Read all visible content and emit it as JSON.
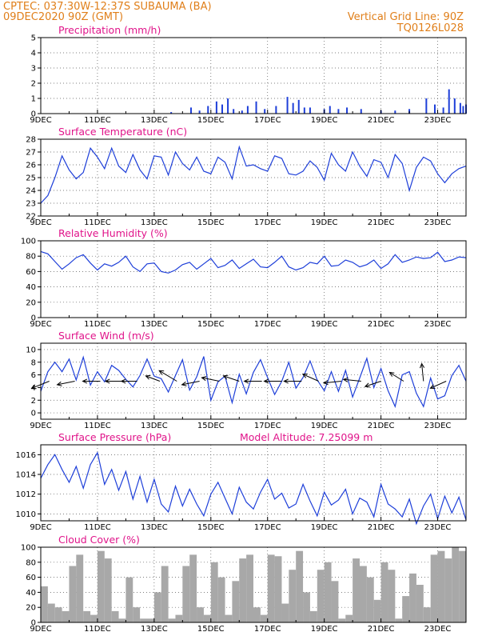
{
  "header": {
    "left_line1": "CPTEC:   037:30W-12:37S   SUBAUMA (BA)",
    "left_line2": "09DEC2020 90Z (GMT)",
    "right_line1": "Vertical Grid Line: 90Z",
    "right_line2": "TQ0126L028"
  },
  "colors": {
    "header": "#e07f1a",
    "title": "#e0148a",
    "line": "#1e3fd9",
    "cloud": "#a8a8a8",
    "arrow": "#000000",
    "grid": "#555555"
  },
  "chart_data": [
    {
      "id": "precip",
      "type": "bar",
      "title": "Precipitation (mm/h)",
      "x_labels": [
        "9DEC",
        "11DEC",
        "13DEC",
        "15DEC",
        "17DEC",
        "19DEC",
        "21DEC",
        "23DEC"
      ],
      "ylim": [
        0,
        5
      ],
      "yticks": [
        0,
        1,
        2,
        3,
        4,
        5
      ],
      "x": [
        4.6,
        5.3,
        5.6,
        5.9,
        6.2,
        6.4,
        6.6,
        6.8,
        7.1,
        7.3,
        7.6,
        7.9,
        8.3,
        8.7,
        8.9,
        9.1,
        9.3,
        9.5,
        10.0,
        10.2,
        10.5,
        10.8,
        11.3,
        12.0,
        12.5,
        13.0,
        13.6,
        13.9,
        14.2,
        14.4,
        14.6,
        14.8,
        14.9,
        15.0
      ],
      "values": [
        0.1,
        0.4,
        0.2,
        0.5,
        0.8,
        0.6,
        1.0,
        0.3,
        0.2,
        0.5,
        0.8,
        0.3,
        0.5,
        1.1,
        0.7,
        0.9,
        0.4,
        0.4,
        0.3,
        0.5,
        0.3,
        0.4,
        0.3,
        0.2,
        0.2,
        0.3,
        1.0,
        0.6,
        0.4,
        1.6,
        1.0,
        0.7,
        0.5,
        0.6
      ]
    },
    {
      "id": "temp",
      "type": "line",
      "title": "Surface Temperature (nC)",
      "x_labels": [
        "9DEC",
        "11DEC",
        "13DEC",
        "15DEC",
        "17DEC",
        "19DEC",
        "21DEC",
        "23DEC"
      ],
      "ylim": [
        22,
        28
      ],
      "yticks": [
        22,
        23,
        24,
        25,
        26,
        27,
        28
      ],
      "x": [
        0,
        0.25,
        0.5,
        0.75,
        1.0,
        1.25,
        1.5,
        1.75,
        2.0,
        2.25,
        2.5,
        2.75,
        3.0,
        3.25,
        3.5,
        3.75,
        4.0,
        4.25,
        4.5,
        4.75,
        5.0,
        5.25,
        5.5,
        5.75,
        6.0,
        6.25,
        6.5,
        6.75,
        7.0,
        7.25,
        7.5,
        7.75,
        8.0,
        8.25,
        8.5,
        8.75,
        9.0,
        9.25,
        9.5,
        9.75,
        10.0,
        10.25,
        10.5,
        10.75,
        11.0,
        11.25,
        11.5,
        11.75,
        12.0,
        12.25,
        12.5,
        12.75,
        13.0,
        13.25,
        13.5,
        13.75,
        14.0,
        14.25,
        14.5,
        14.75,
        15.0
      ],
      "values": [
        23.0,
        23.6,
        25.0,
        26.7,
        25.6,
        24.9,
        25.4,
        27.3,
        26.6,
        25.7,
        27.3,
        25.9,
        25.4,
        26.8,
        25.6,
        24.9,
        26.7,
        26.6,
        25.2,
        27.0,
        26.1,
        25.6,
        26.6,
        25.5,
        25.3,
        26.6,
        26.2,
        24.9,
        27.4,
        25.9,
        26.0,
        25.7,
        25.5,
        26.7,
        26.5,
        25.3,
        25.2,
        25.5,
        26.3,
        25.8,
        24.8,
        26.9,
        26.0,
        25.5,
        27.0,
        25.9,
        25.1,
        26.4,
        26.2,
        25.0,
        26.8,
        26.1,
        24.0,
        25.8,
        26.6,
        26.3,
        25.3,
        24.6,
        25.3,
        25.7,
        25.9
      ]
    },
    {
      "id": "rh",
      "type": "line",
      "title": "Relative Humidity (%)",
      "x_labels": [
        "9DEC",
        "11DEC",
        "13DEC",
        "15DEC",
        "17DEC",
        "19DEC",
        "21DEC",
        "23DEC"
      ],
      "ylim": [
        0,
        100
      ],
      "yticks": [
        0,
        20,
        40,
        60,
        80,
        100
      ],
      "x": [
        0,
        0.25,
        0.5,
        0.75,
        1.0,
        1.25,
        1.5,
        1.75,
        2.0,
        2.25,
        2.5,
        2.75,
        3.0,
        3.25,
        3.5,
        3.75,
        4.0,
        4.25,
        4.5,
        4.75,
        5.0,
        5.25,
        5.5,
        5.75,
        6.0,
        6.25,
        6.5,
        6.75,
        7.0,
        7.25,
        7.5,
        7.75,
        8.0,
        8.25,
        8.5,
        8.75,
        9.0,
        9.25,
        9.5,
        9.75,
        10.0,
        10.25,
        10.5,
        10.75,
        11.0,
        11.25,
        11.5,
        11.75,
        12.0,
        12.25,
        12.5,
        12.75,
        13.0,
        13.25,
        13.5,
        13.75,
        14.0,
        14.25,
        14.5,
        14.75,
        15.0
      ],
      "values": [
        86,
        83,
        73,
        63,
        70,
        78,
        82,
        71,
        62,
        70,
        67,
        72,
        80,
        66,
        60,
        70,
        71,
        60,
        58,
        62,
        69,
        72,
        63,
        70,
        77,
        65,
        68,
        75,
        64,
        70,
        76,
        66,
        65,
        72,
        80,
        66,
        62,
        65,
        72,
        70,
        80,
        67,
        68,
        75,
        72,
        66,
        69,
        75,
        64,
        70,
        82,
        72,
        75,
        79,
        77,
        78,
        85,
        73,
        75,
        79,
        78
      ]
    },
    {
      "id": "wind",
      "type": "line",
      "title": "Surface Wind (m/s)",
      "x_labels": [
        "9DEC",
        "11DEC",
        "13DEC",
        "15DEC",
        "17DEC",
        "19DEC",
        "21DEC",
        "23DEC"
      ],
      "ylim": [
        -1,
        11
      ],
      "yticks": [
        0,
        2,
        4,
        6,
        8,
        10
      ],
      "x": [
        0,
        0.25,
        0.5,
        0.75,
        1.0,
        1.25,
        1.5,
        1.75,
        2.0,
        2.25,
        2.5,
        2.75,
        3.0,
        3.25,
        3.5,
        3.75,
        4.0,
        4.25,
        4.5,
        4.75,
        5.0,
        5.25,
        5.5,
        5.75,
        6.0,
        6.25,
        6.5,
        6.75,
        7.0,
        7.25,
        7.5,
        7.75,
        8.0,
        8.25,
        8.5,
        8.75,
        9.0,
        9.25,
        9.5,
        9.75,
        10.0,
        10.25,
        10.5,
        10.75,
        11.0,
        11.25,
        11.5,
        11.75,
        12.0,
        12.25,
        12.5,
        12.75,
        13.0,
        13.25,
        13.5,
        13.75,
        14.0,
        14.25,
        14.5,
        14.75,
        15.0
      ],
      "values": [
        3.4,
        6.5,
        8.0,
        6.5,
        8.5,
        5.2,
        8.8,
        4.4,
        6.5,
        4.9,
        7.5,
        6.7,
        5.3,
        4.1,
        5.9,
        8.5,
        5.8,
        5.4,
        3.3,
        5.9,
        8.4,
        3.6,
        5.7,
        8.9,
        2.0,
        4.9,
        5.8,
        1.6,
        6.1,
        3.0,
        6.4,
        8.4,
        5.6,
        2.9,
        5.0,
        8.0,
        3.9,
        5.6,
        8.2,
        5.2,
        3.5,
        6.5,
        3.4,
        6.7,
        2.5,
        5.5,
        8.6,
        4.0,
        7.0,
        3.5,
        1.0,
        6.0,
        6.5,
        3.1,
        1.0,
        5.5,
        2.2,
        2.7,
        5.9,
        7.5,
        5.0
      ],
      "vectors_x": [
        0.3,
        1.2,
        2.1,
        2.9,
        3.4,
        4.2,
        4.8,
        5.6,
        6.3,
        7.0,
        7.8,
        8.5,
        9.2,
        9.8,
        10.6,
        11.3,
        12.0,
        12.8,
        13.5,
        14.3
      ],
      "vectors_dx": [
        -1.0,
        -1.0,
        -1.0,
        -1.0,
        -0.9,
        -0.8,
        -1.0,
        -1.0,
        -1.0,
        -0.9,
        -1.0,
        -1.0,
        -1.0,
        -0.9,
        -1.0,
        -1.0,
        -0.9,
        -0.8,
        -0.1,
        -0.9
      ],
      "vectors_dy": [
        -0.4,
        -0.2,
        0.0,
        0.0,
        0.0,
        0.3,
        0.6,
        -0.2,
        0.2,
        0.3,
        0.0,
        0.0,
        0.0,
        0.4,
        -0.1,
        0.1,
        -0.3,
        0.5,
        1.0,
        -0.4
      ]
    },
    {
      "id": "pressure",
      "type": "line",
      "title": "Surface Pressure (hPa)",
      "annotation": "Model Altitude: 7.25099 m",
      "x_labels": [
        "9DEC",
        "11DEC",
        "13DEC",
        "15DEC",
        "17DEC",
        "19DEC",
        "21DEC",
        "23DEC"
      ],
      "ylim": [
        1009.3,
        1017
      ],
      "yticks": [
        1010,
        1012,
        1014,
        1016
      ],
      "x": [
        0,
        0.25,
        0.5,
        0.75,
        1.0,
        1.25,
        1.5,
        1.75,
        2.0,
        2.25,
        2.5,
        2.75,
        3.0,
        3.25,
        3.5,
        3.75,
        4.0,
        4.25,
        4.5,
        4.75,
        5.0,
        5.25,
        5.5,
        5.75,
        6.0,
        6.25,
        6.5,
        6.75,
        7.0,
        7.25,
        7.5,
        7.75,
        8.0,
        8.25,
        8.5,
        8.75,
        9.0,
        9.25,
        9.5,
        9.75,
        10.0,
        10.25,
        10.5,
        10.75,
        11.0,
        11.25,
        11.5,
        11.75,
        12.0,
        12.25,
        12.5,
        12.75,
        13.0,
        13.25,
        13.5,
        13.75,
        14.0,
        14.25,
        14.5,
        14.75,
        15.0
      ],
      "values": [
        1013.6,
        1015.0,
        1016.0,
        1014.5,
        1013.2,
        1014.8,
        1012.6,
        1015.0,
        1016.2,
        1013.0,
        1014.5,
        1012.4,
        1014.3,
        1011.5,
        1013.8,
        1011.2,
        1013.5,
        1011.0,
        1010.2,
        1012.8,
        1010.8,
        1012.5,
        1011.0,
        1009.8,
        1012.0,
        1013.2,
        1011.6,
        1010.0,
        1012.7,
        1011.2,
        1010.5,
        1012.2,
        1013.5,
        1011.5,
        1012.1,
        1010.6,
        1011.0,
        1013.0,
        1011.3,
        1009.8,
        1012.2,
        1010.9,
        1011.4,
        1012.5,
        1010.0,
        1011.6,
        1011.2,
        1009.7,
        1013.0,
        1011.0,
        1010.5,
        1009.7,
        1011.5,
        1009.0,
        1010.8,
        1012.0,
        1009.5,
        1011.8,
        1010.1,
        1011.7,
        1009.4
      ]
    },
    {
      "id": "cloud",
      "type": "bar",
      "title": "Cloud Cover (%)",
      "x_labels": [
        "9DEC",
        "11DEC",
        "13DEC",
        "15DEC",
        "17DEC",
        "19DEC",
        "21DEC",
        "23DEC"
      ],
      "ylim": [
        0,
        100
      ],
      "yticks": [
        0,
        20,
        40,
        60,
        80,
        100
      ],
      "x": [
        0,
        0.25,
        0.5,
        0.75,
        1.0,
        1.25,
        1.5,
        1.75,
        2.0,
        2.25,
        2.5,
        2.75,
        3.0,
        3.25,
        3.5,
        3.75,
        4.0,
        4.25,
        4.5,
        4.75,
        5.0,
        5.25,
        5.5,
        5.75,
        6.0,
        6.25,
        6.5,
        6.75,
        7.0,
        7.25,
        7.5,
        7.75,
        8.0,
        8.25,
        8.5,
        8.75,
        9.0,
        9.25,
        9.5,
        9.75,
        10.0,
        10.25,
        10.5,
        10.75,
        11.0,
        11.25,
        11.5,
        11.75,
        12.0,
        12.25,
        12.5,
        12.75,
        13.0,
        13.25,
        13.5,
        13.75,
        14.0,
        14.25,
        14.5,
        14.75
      ],
      "values": [
        48,
        25,
        20,
        15,
        75,
        90,
        15,
        10,
        95,
        85,
        15,
        5,
        60,
        20,
        5,
        5,
        40,
        75,
        5,
        10,
        75,
        90,
        20,
        10,
        80,
        60,
        10,
        55,
        85,
        90,
        20,
        10,
        90,
        88,
        25,
        70,
        95,
        40,
        15,
        70,
        80,
        55,
        5,
        10,
        85,
        75,
        60,
        30,
        80,
        70,
        5,
        35,
        65,
        50,
        20,
        90,
        95,
        85,
        100,
        95
      ]
    }
  ]
}
